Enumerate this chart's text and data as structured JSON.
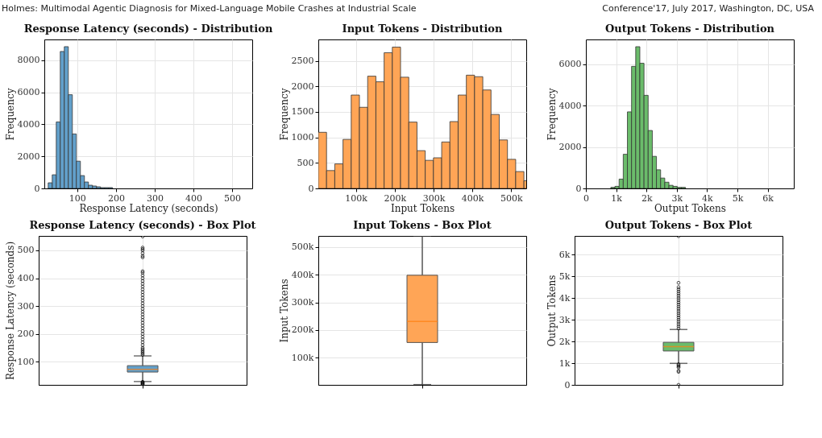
{
  "chart_data": [
    {
      "type": "histogram",
      "title": "Response Latency (seconds) - Distribution",
      "xlabel": "Response Latency (seconds)",
      "ylabel": "Frequency",
      "color": "#62a0cb",
      "grid": true,
      "annotations": [
        "Holmes: Multimodal Agentic Diagnosis for Mixed-Language Mobile Crashes at Industrial Scale"
      ],
      "bins": [
        25.0,
        35.4,
        45.8,
        56.2,
        66.6,
        77.0,
        87.4,
        97.8,
        108.2,
        118.6,
        129.0,
        139.4,
        149.8,
        160.2,
        170.6,
        181.0,
        191.4,
        201.8,
        212.2,
        222.6,
        233.0,
        243.4,
        253.8,
        264.2,
        274.6,
        285.0,
        295.4,
        305.8,
        316.2,
        326.6,
        337.0,
        347.4,
        357.8,
        368.2,
        378.6,
        389.0,
        399.4,
        409.8,
        420.2,
        430.6,
        441.0,
        451.4,
        461.8,
        472.2,
        482.6,
        493.0,
        503.4,
        513.8,
        524.2,
        534.6,
        545.0
      ],
      "values": [
        350,
        850,
        4150,
        8550,
        8850,
        5850,
        3400,
        1700,
        800,
        400,
        200,
        150,
        100,
        50,
        50,
        50,
        0,
        0,
        0,
        0,
        0,
        0,
        0,
        0,
        0,
        0,
        0,
        0,
        0,
        0,
        0,
        0,
        0,
        0,
        0,
        0,
        0,
        0,
        0,
        0,
        0,
        0,
        0,
        0,
        0,
        0,
        0,
        0,
        0,
        0
      ],
      "xlim": [
        15,
        552
      ],
      "xticks": [
        100,
        200,
        300,
        400,
        500
      ],
      "ylim": [
        0,
        9300
      ],
      "yticks": [
        0,
        2000,
        4000,
        6000,
        8000
      ]
    },
    {
      "type": "histogram",
      "title": "Input Tokens - Distribution",
      "xlabel": "Input Tokens",
      "ylabel": "Frequency",
      "color": "#ffa556",
      "grid": true,
      "bins": [
        3000,
        24200,
        45400,
        66600,
        87800,
        109000,
        130200,
        151400,
        172600,
        193800,
        215000,
        236200,
        257400,
        278600,
        299800,
        321000,
        342200,
        363400,
        384600,
        405800,
        427000,
        448200,
        469400,
        490600,
        511800,
        533000,
        554200
      ],
      "values": [
        1100,
        350,
        480,
        960,
        1830,
        1590,
        2200,
        2090,
        2660,
        2770,
        2180,
        1300,
        740,
        550,
        600,
        910,
        1310,
        1830,
        2220,
        2190,
        1930,
        1450,
        950,
        570,
        330,
        150
      ],
      "xlim": [
        3000,
        539000
      ],
      "xticks": [
        {
          "value": 100000,
          "label": "100k"
        },
        {
          "value": 200000,
          "label": "200k"
        },
        {
          "value": 300000,
          "label": "300k"
        },
        {
          "value": 400000,
          "label": "400k"
        },
        {
          "value": 500000,
          "label": "500k"
        }
      ],
      "ylim": [
        0,
        2920
      ],
      "yticks": [
        0,
        500,
        1000,
        1500,
        2000,
        2500
      ]
    },
    {
      "type": "histogram",
      "title": "Output Tokens - Distribution",
      "xlabel": "Output Tokens",
      "ylabel": "Frequency",
      "color": "#6bbc6b",
      "grid": true,
      "annotations": [
        "Conference'17, July 2017, Washington, DC, USA"
      ],
      "bins": [
        0,
        137,
        274,
        411,
        548,
        685,
        822,
        959,
        1096,
        1233,
        1370,
        1507,
        1644,
        1781,
        1918,
        2055,
        2192,
        2329,
        2466,
        2603,
        2740,
        2877,
        3014,
        3151,
        3288,
        3425,
        3562,
        3699,
        3836,
        3973,
        4110,
        4247,
        4384,
        4521,
        4658,
        4795,
        4932,
        5069,
        5206,
        5343,
        5480,
        5617,
        5754,
        5891,
        6028,
        6165,
        6302,
        6439,
        6576,
        6713,
        6850
      ],
      "values": [
        0,
        0,
        0,
        0,
        0,
        0,
        50,
        100,
        450,
        1650,
        3700,
        5900,
        6850,
        6050,
        4500,
        2800,
        1550,
        900,
        500,
        300,
        150,
        100,
        50,
        50,
        0,
        0,
        0,
        0,
        0,
        0,
        0,
        0,
        0,
        0,
        0,
        0,
        0,
        0,
        0,
        0,
        0,
        0,
        0,
        0,
        0,
        0,
        0,
        0,
        0,
        0
      ],
      "xlim": [
        0,
        6860
      ],
      "xticks": [
        0,
        {
          "value": 1000,
          "label": "1k"
        },
        {
          "value": 2000,
          "label": "2k"
        },
        {
          "value": 3000,
          "label": "3k"
        },
        {
          "value": 4000,
          "label": "4k"
        },
        {
          "value": 5000,
          "label": "5k"
        },
        {
          "value": 6000,
          "label": "6k"
        }
      ],
      "ylim": [
        0,
        7200
      ],
      "yticks": [
        0,
        2000,
        4000,
        6000
      ]
    },
    {
      "type": "box",
      "title": "Response Latency (seconds) - Box Plot",
      "ylabel": "Response Latency (seconds)",
      "color": "#62a0cb",
      "grid": true,
      "tick_labels": "y",
      "categories": [
        null
      ],
      "boxes": [
        {
          "low": 29,
          "q1": 63,
          "median": 73,
          "q3": 86,
          "high": 121,
          "outliers": [
            18,
            20,
            22,
            24,
            26,
            28,
            125,
            130,
            135,
            140,
            145,
            150,
            160,
            170,
            180,
            190,
            200,
            210,
            220,
            230,
            240,
            250,
            260,
            270,
            280,
            290,
            300,
            310,
            320,
            330,
            340,
            350,
            360,
            370,
            380,
            390,
            400,
            410,
            420,
            425,
            475,
            480,
            490,
            500,
            505,
            510,
            550
          ]
        }
      ],
      "ylim": [
        17,
        552
      ],
      "yticks": [
        100,
        200,
        300,
        400,
        500
      ]
    },
    {
      "type": "box",
      "title": "Input Tokens - Box Plot",
      "ylabel": "Input Tokens",
      "color": "#ffa556",
      "grid": true,
      "tick_labels": "y",
      "categories": [
        null
      ],
      "boxes": [
        {
          "low": 3000,
          "q1": 155000,
          "median": 231000,
          "q3": 398000,
          "high": 539000
        }
      ],
      "ylim": [
        2000,
        540000
      ],
      "yticks": [
        {
          "value": 100000,
          "label": "100k"
        },
        {
          "value": 200000,
          "label": "200k"
        },
        {
          "value": 300000,
          "label": "300k"
        },
        {
          "value": 400000,
          "label": "400k"
        },
        {
          "value": 500000,
          "label": "500k"
        }
      ]
    },
    {
      "type": "box",
      "title": "Output Tokens - Box Plot",
      "ylabel": "Output Tokens",
      "color": "#6bbc6b",
      "grid": true,
      "tick_labels": "y",
      "categories": [
        null
      ],
      "boxes": [
        {
          "low": 990,
          "q1": 1560,
          "median": 1760,
          "q3": 1960,
          "high": 2550,
          "outliers": [
            0,
            600,
            650,
            800,
            850,
            900,
            950,
            2600,
            2700,
            2800,
            2900,
            3000,
            3100,
            3200,
            3300,
            3400,
            3500,
            3600,
            3700,
            3800,
            3900,
            4000,
            4100,
            4200,
            4300,
            4400,
            4500,
            4700,
            6850
          ]
        }
      ],
      "ylim": [
        0,
        6860
      ],
      "yticks": [
        0,
        {
          "value": 1000,
          "label": "1k"
        },
        {
          "value": 2000,
          "label": "2k"
        },
        {
          "value": 3000,
          "label": "3k"
        },
        {
          "value": 4000,
          "label": "4k"
        },
        {
          "value": 5000,
          "label": "5k"
        },
        {
          "value": 6000,
          "label": "6k"
        }
      ]
    }
  ]
}
